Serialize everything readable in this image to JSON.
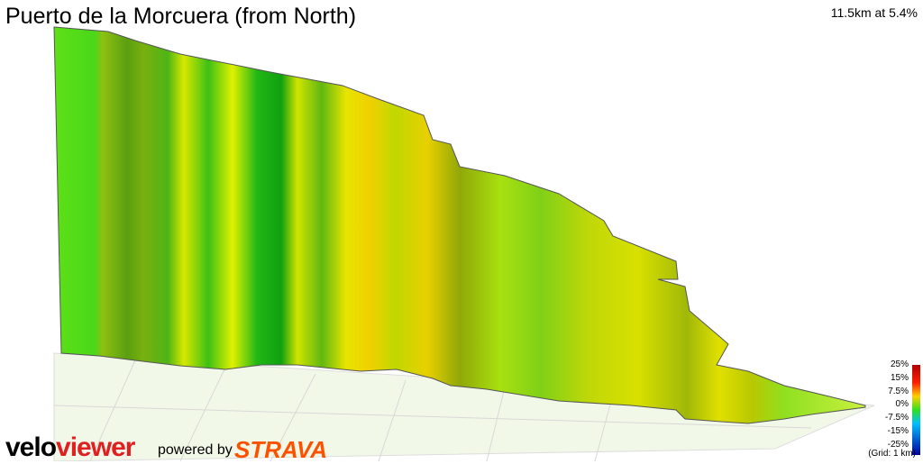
{
  "header": {
    "title": "Puerto de la Morcuera (from North)",
    "summary": "11.5km at 5.4%"
  },
  "legend": {
    "labels": [
      "25%",
      "15%",
      "7.5%",
      "0%",
      "-7.5%",
      "-15%",
      "-25%"
    ],
    "grid_note": "(Grid: 1 km)"
  },
  "branding": {
    "velo": "velo",
    "viewer": "viewer",
    "powered_by": "powered by",
    "strava": "STRAVA"
  }
}
